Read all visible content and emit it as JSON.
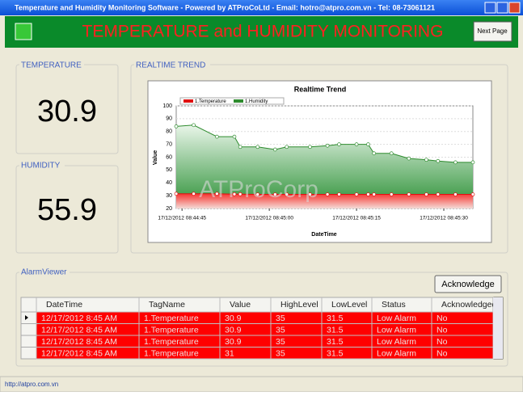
{
  "window": {
    "title": "Temperature and Humidity Monitoring Software - Powered by ATProCoLtd - Email: hotro@atpro.com.vn - Tel: 08-73061121"
  },
  "header": {
    "title": "TEMPERATURE and HUMIDITY MONITORING",
    "button": "Next Page"
  },
  "temperature": {
    "label": "TEMPERATURE",
    "value": "30.9"
  },
  "humidity": {
    "label": "HUMIDITY",
    "value": "55.9"
  },
  "trend": {
    "label": "REALTIME TREND"
  },
  "watermark": "ATProCorp",
  "chart_data": {
    "type": "area",
    "title": "Realtime Trend",
    "x_label": "DateTime",
    "y_label": "Value",
    "x": [
      31484,
      31487,
      31491,
      31494,
      31495,
      31498,
      31501,
      31503,
      31507,
      31510,
      31512,
      31515,
      31517,
      31518,
      31521,
      31524,
      31527,
      31529,
      31532,
      31535
    ],
    "series": [
      {
        "name": "1.Humidity",
        "color": "#2e8b2e",
        "values": [
          84,
          85,
          76,
          76,
          68,
          68,
          66,
          68,
          68,
          69,
          70,
          70,
          70,
          63,
          63,
          59,
          58,
          57,
          56,
          56
        ]
      },
      {
        "name": "1.Temperature",
        "color": "#e01010",
        "values": [
          31.5,
          31.5,
          31.5,
          31.2,
          31.2,
          31,
          31,
          31,
          31,
          31,
          31,
          31,
          31,
          31,
          31,
          31,
          31,
          31,
          31,
          31
        ]
      }
    ],
    "xlim": [
      31484,
      31535
    ],
    "xticks": [
      {
        "value": 31485,
        "label": "17/12/2012 08:44:45"
      },
      {
        "value": 31500,
        "label": "17/12/2012 08:45:00"
      },
      {
        "value": 31515,
        "label": "17/12/2012 08:45:15"
      },
      {
        "value": 31530,
        "label": "17/12/2012 08:45:30"
      }
    ],
    "ylim": [
      20,
      100
    ],
    "yticks": [
      20,
      30,
      40,
      50,
      60,
      70,
      80,
      90,
      100
    ],
    "grid": true
  },
  "alarm": {
    "label": "AlarmViewer",
    "button": "Acknowledge",
    "columns": [
      "DateTime",
      "TagName",
      "Value",
      "HighLevel",
      "LowLevel",
      "Status",
      "Acknowledged"
    ],
    "rows": [
      [
        "12/17/2012 8:45 AM",
        "1.Temperature",
        "30.9",
        "35",
        "31.5",
        "Low Alarm",
        "No"
      ],
      [
        "12/17/2012 8:45 AM",
        "1.Temperature",
        "30.9",
        "35",
        "31.5",
        "Low Alarm",
        "No"
      ],
      [
        "12/17/2012 8:45 AM",
        "1.Temperature",
        "30.9",
        "35",
        "31.5",
        "Low Alarm",
        "No"
      ],
      [
        "12/17/2012 8:45 AM",
        "1.Temperature",
        "31",
        "35",
        "31.5",
        "Low Alarm",
        "No"
      ]
    ]
  },
  "status": "http://atpro.com.vn"
}
